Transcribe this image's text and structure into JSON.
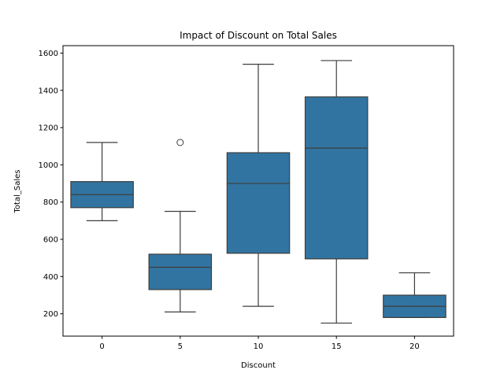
{
  "chart_data": {
    "type": "boxplot",
    "title": "Impact of Discount on Total Sales",
    "xlabel": "Discount",
    "ylabel": "Total_Sales",
    "ylim": [
      80,
      1640
    ],
    "yticks": [
      200,
      400,
      600,
      800,
      1000,
      1200,
      1400,
      1600
    ],
    "categories": [
      "0",
      "5",
      "10",
      "15",
      "20"
    ],
    "box_color": "#3274a1",
    "line_color": "#3d3d3d",
    "grid": false,
    "boxes": [
      {
        "category": "0",
        "whisker_low": 700,
        "q1": 770,
        "median": 840,
        "q3": 910,
        "whisker_high": 1120,
        "outliers": []
      },
      {
        "category": "5",
        "whisker_low": 210,
        "q1": 330,
        "median": 450,
        "q3": 520,
        "whisker_high": 750,
        "outliers": [
          1120
        ]
      },
      {
        "category": "10",
        "whisker_low": 240,
        "q1": 525,
        "median": 900,
        "q3": 1065,
        "whisker_high": 1540,
        "outliers": []
      },
      {
        "category": "15",
        "whisker_low": 150,
        "q1": 495,
        "median": 1090,
        "q3": 1365,
        "whisker_high": 1560,
        "outliers": []
      },
      {
        "category": "20",
        "whisker_low": 180,
        "q1": 180,
        "median": 240,
        "q3": 300,
        "whisker_high": 420,
        "outliers": []
      }
    ]
  }
}
